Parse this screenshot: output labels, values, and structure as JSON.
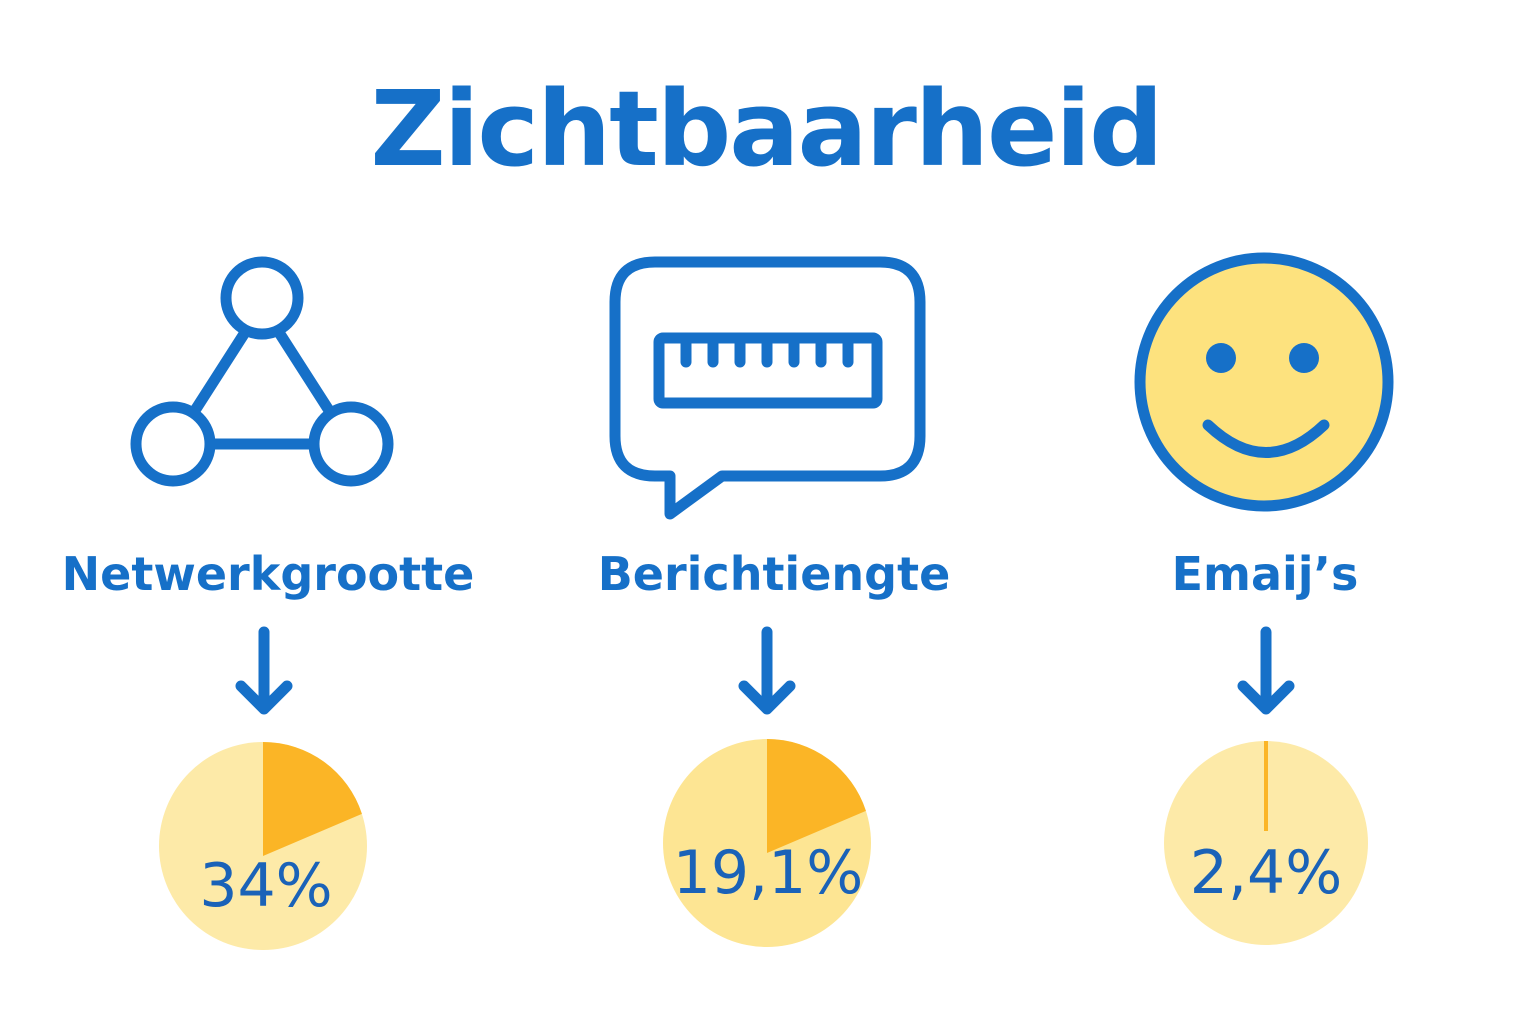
{
  "title": "Zichtbaarheid",
  "colors": {
    "blue": "#1670c8",
    "pie_base": "#fde593",
    "pie_base_light": "#fdeaa8",
    "wedge": "#fbb526",
    "smiley_fill": "#fde27e"
  },
  "items": [
    {
      "label": "Netwerkgrootte",
      "icon": "network-triangle-icon",
      "value_label": "34%",
      "value": 34
    },
    {
      "label": "Berichtiengte",
      "icon": "speech-bubble-ruler-icon",
      "value_label": "19,1%",
      "value": 19.1
    },
    {
      "label": "Emaij’s",
      "icon": "smiley-face-icon",
      "value_label": "2,4%",
      "value": 2.4
    }
  ]
}
